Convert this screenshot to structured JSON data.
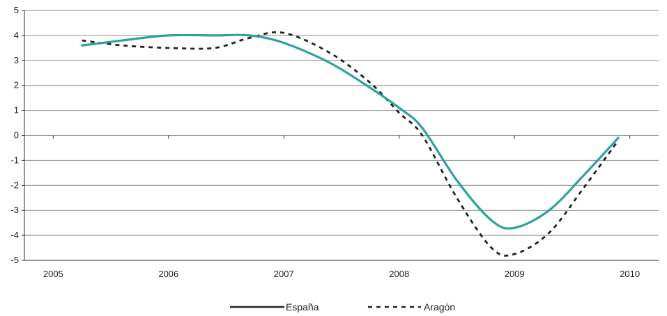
{
  "chart_data": {
    "type": "line",
    "title": "",
    "xlabel": "",
    "ylabel": "",
    "x_ticks": [
      "2005",
      "2006",
      "2007",
      "2008",
      "2009",
      "2010"
    ],
    "x_tick_values": [
      2005,
      2006,
      2007,
      2008,
      2009,
      2010
    ],
    "y_ticks": [
      5,
      4,
      3,
      2,
      1,
      0,
      -1,
      -2,
      -3,
      -4,
      -5
    ],
    "xlim": [
      2004.75,
      2010.25
    ],
    "ylim": [
      -5,
      5
    ],
    "grid": true,
    "legend_position": "bottom-center",
    "series": [
      {
        "name": "España",
        "style": "solid",
        "color": "#2BA39B",
        "x": [
          2005.25,
          2005.6,
          2006.0,
          2006.4,
          2006.7,
          2007.0,
          2007.4,
          2007.75,
          2008.0,
          2008.2,
          2008.5,
          2008.8,
          2009.0,
          2009.3,
          2009.6,
          2009.9
        ],
        "y": [
          3.6,
          3.8,
          4.0,
          4.0,
          4.0,
          3.7,
          2.9,
          1.9,
          1.1,
          0.3,
          -1.8,
          -3.4,
          -3.7,
          -3.0,
          -1.6,
          -0.1
        ]
      },
      {
        "name": "Aragón",
        "style": "dashed",
        "color": "#222222",
        "x": [
          2005.25,
          2005.6,
          2006.0,
          2006.4,
          2006.7,
          2007.0,
          2007.4,
          2007.75,
          2008.0,
          2008.2,
          2008.5,
          2008.8,
          2009.0,
          2009.3,
          2009.6,
          2009.9
        ],
        "y": [
          3.8,
          3.6,
          3.5,
          3.5,
          3.9,
          4.1,
          3.3,
          2.1,
          0.9,
          0.0,
          -2.5,
          -4.5,
          -4.75,
          -3.9,
          -2.1,
          -0.2
        ]
      }
    ]
  },
  "colors": {
    "axis": "#333333",
    "grid": "#8a8a8a"
  }
}
